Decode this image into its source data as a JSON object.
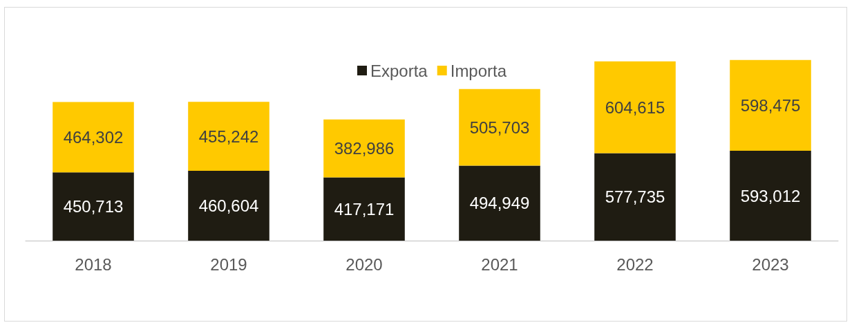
{
  "chart_data": {
    "type": "bar",
    "stacked": true,
    "categories": [
      "2018",
      "2019",
      "2020",
      "2021",
      "2022",
      "2023"
    ],
    "series": [
      {
        "name": "Exporta",
        "color": "#1f1c12",
        "values": [
          450713,
          460604,
          417171,
          494949,
          577735,
          593012
        ],
        "value_labels": [
          "450,713",
          "460,604",
          "417,171",
          "494,949",
          "577,735",
          "593,012"
        ]
      },
      {
        "name": "Importa",
        "color": "#ffc900",
        "values": [
          464302,
          455242,
          382986,
          505703,
          604615,
          598475
        ],
        "value_labels": [
          "464,302",
          "455,242",
          "382,986",
          "505,703",
          "604,615",
          "598,475"
        ]
      }
    ],
    "legend": "top",
    "tick_labels": "x",
    "grid": false
  }
}
